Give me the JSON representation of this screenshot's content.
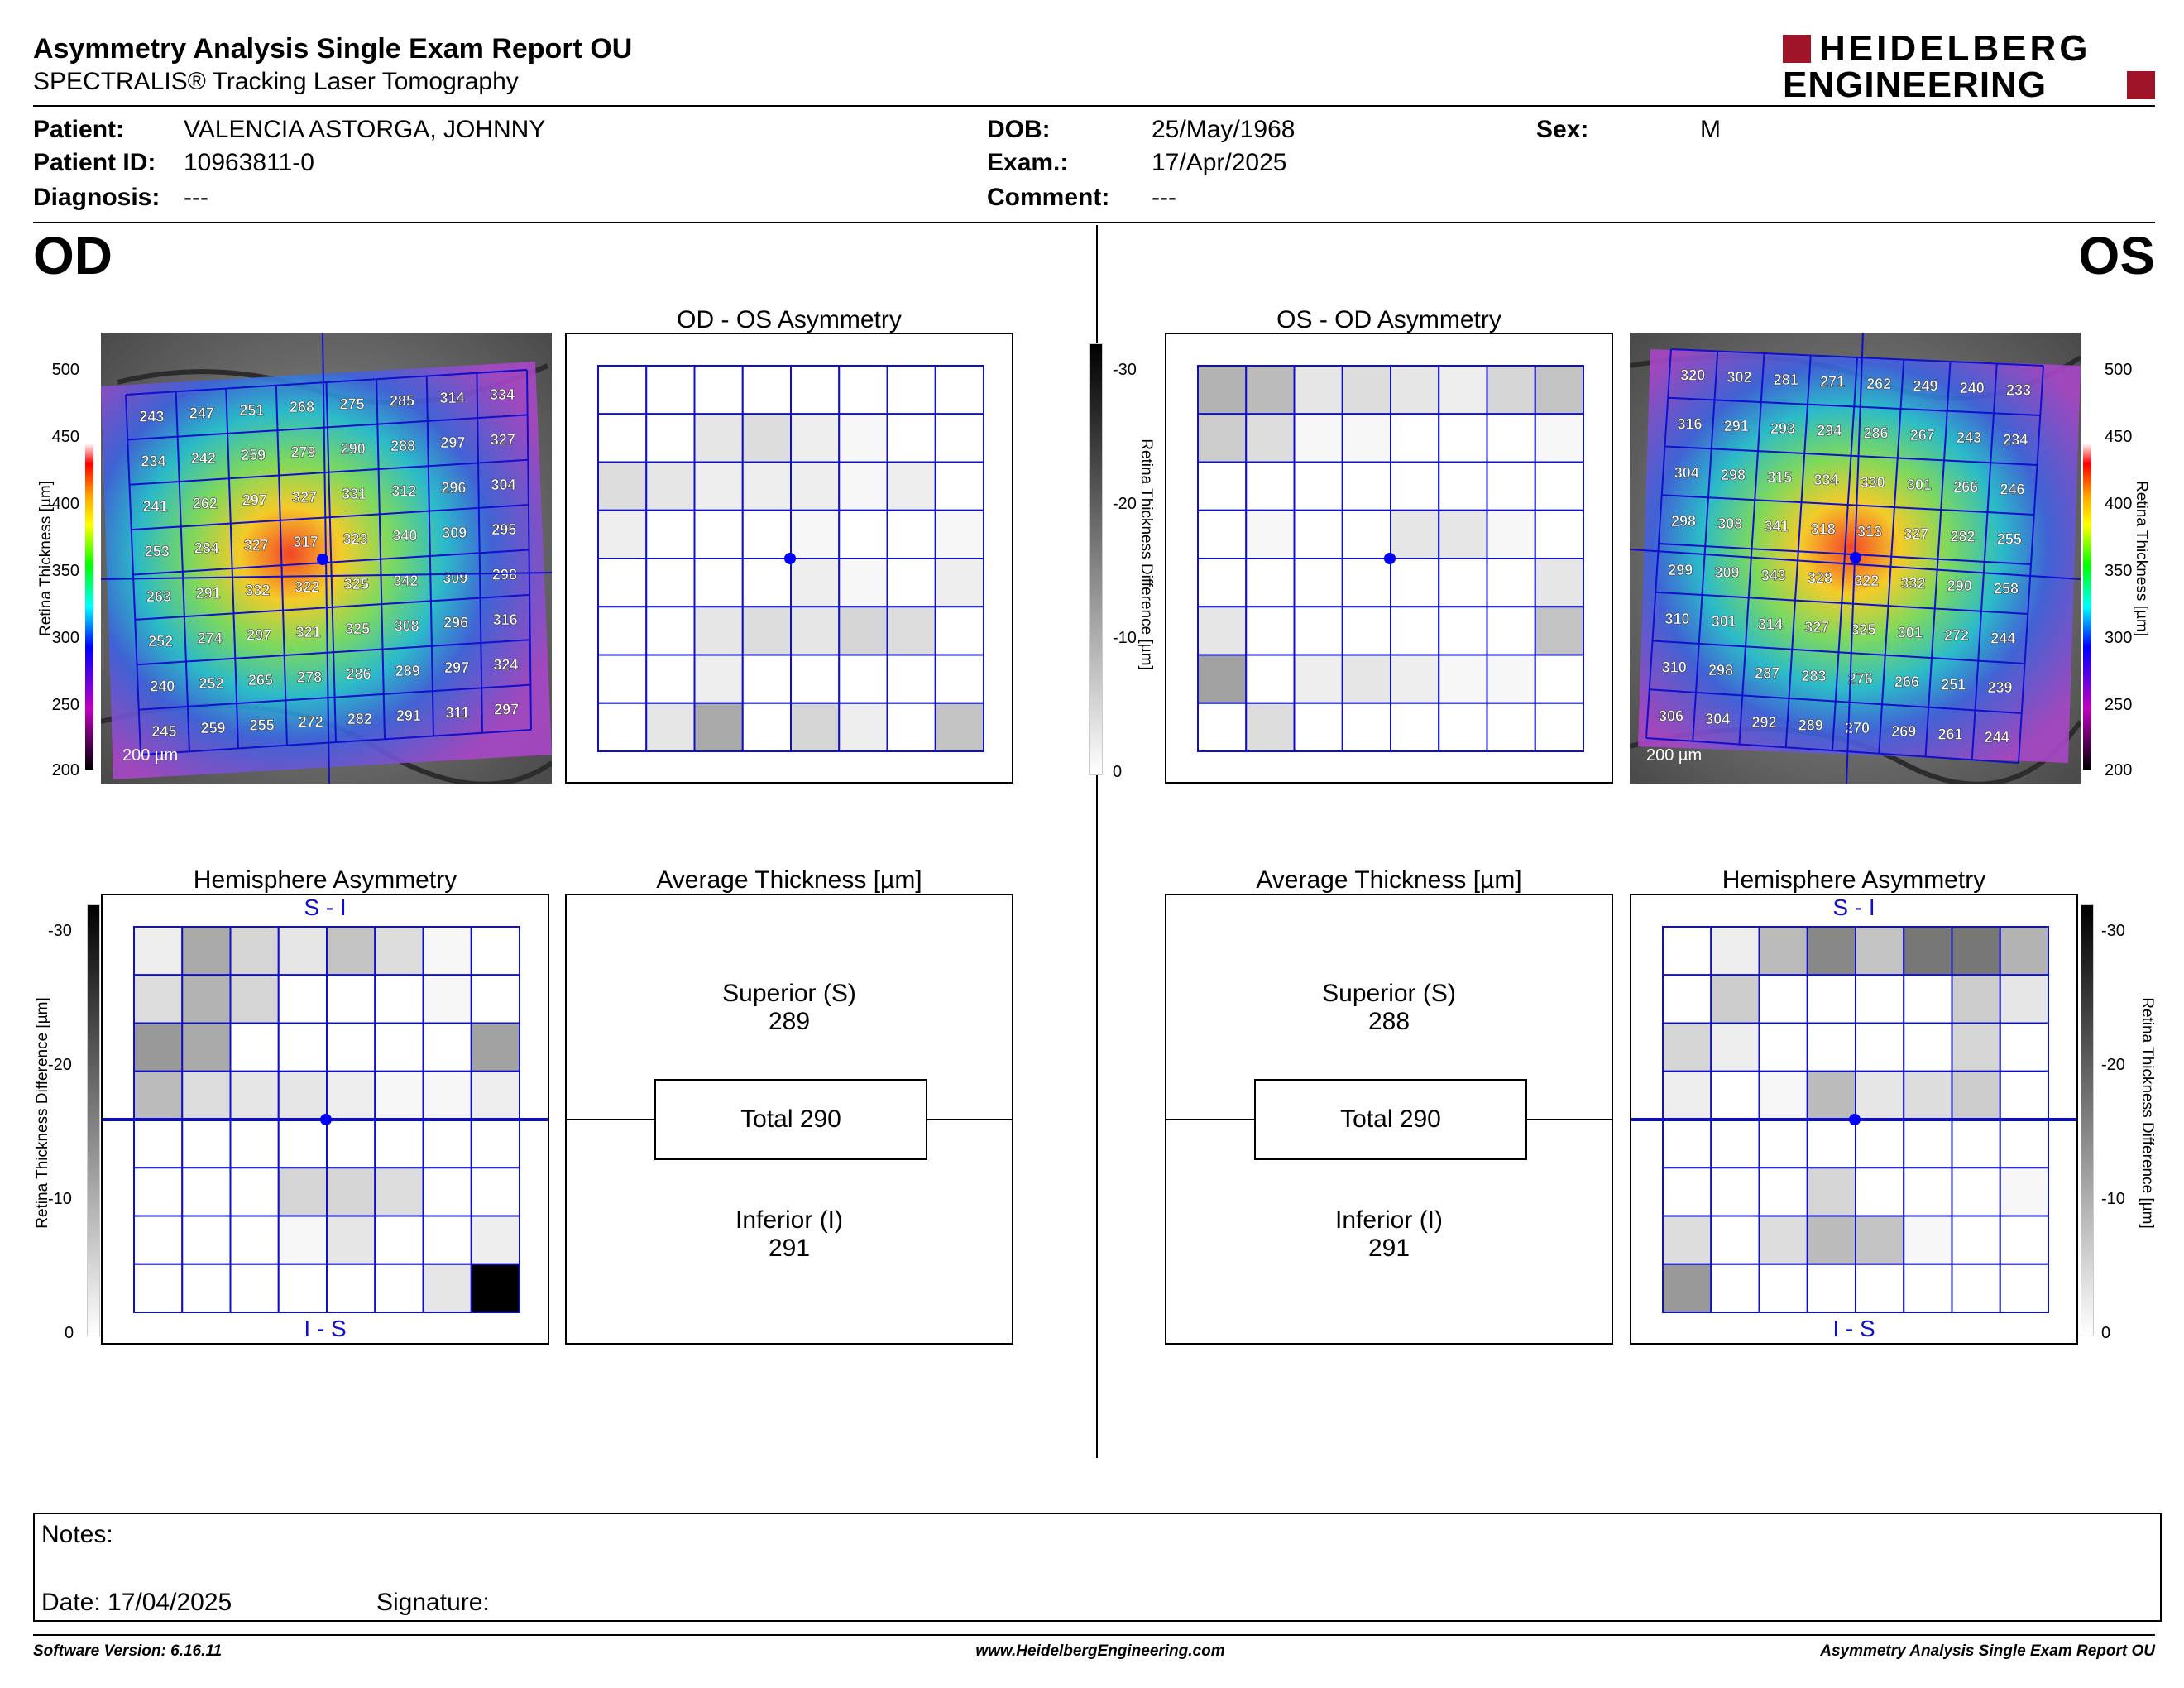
{
  "header": {
    "title": "Asymmetry Analysis Single Exam Report OU",
    "subtitle": "SPECTRALIS® Tracking Laser Tomography",
    "logo_line1": "HEIDELBERG",
    "logo_line2": "ENGINEERING"
  },
  "patient": {
    "patient_label": "Patient:",
    "patient_value": "VALENCIA ASTORGA, JOHNNY",
    "id_label": "Patient ID:",
    "id_value": "10963811-0",
    "diagnosis_label": "Diagnosis:",
    "diagnosis_value": "---",
    "dob_label": "DOB:",
    "dob_value": "25/May/1968",
    "exam_label": "Exam.:",
    "exam_value": "17/Apr/2025",
    "comment_label": "Comment:",
    "comment_value": "---",
    "sex_label": "Sex:",
    "sex_value": "M"
  },
  "eyes": {
    "od": "OD",
    "os": "OS"
  },
  "panels": {
    "od_os_title": "OD - OS Asymmetry",
    "os_od_title": "OS - OD Asymmetry",
    "hemi_title": "Hemisphere Asymmetry",
    "avg_title": "Average Thickness [µm]",
    "s_minus_i": "S - I",
    "i_minus_s": "I - S",
    "scale_bar": "200 µm"
  },
  "axes": {
    "thickness_label": "Retina  Thickness [µm]",
    "thickness_ticks": [
      "500",
      "450",
      "400",
      "350",
      "300",
      "250",
      "200"
    ],
    "diff_label": "Retina Thickness Difference [µm]",
    "diff_ticks": [
      "-30",
      "-20",
      "-10",
      "0"
    ]
  },
  "colors": {
    "grid": "#1010cc",
    "fovea": "#0000ff"
  },
  "od_thickness": [
    [
      "243",
      "247",
      "251",
      "268",
      "275",
      "285",
      "314",
      "334"
    ],
    [
      "234",
      "242",
      "259",
      "279",
      "290",
      "288",
      "297",
      "327"
    ],
    [
      "241",
      "262",
      "297",
      "327",
      "331",
      "312",
      "296",
      "304"
    ],
    [
      "253",
      "284",
      "327",
      "317",
      "323",
      "340",
      "309",
      "295"
    ],
    [
      "263",
      "291",
      "332",
      "322",
      "325",
      "342",
      "309",
      "298"
    ],
    [
      "252",
      "274",
      "297",
      "321",
      "325",
      "308",
      "296",
      "316"
    ],
    [
      "240",
      "252",
      "265",
      "278",
      "286",
      "289",
      "297",
      "324"
    ],
    [
      "245",
      "259",
      "255",
      "272",
      "282",
      "291",
      "311",
      "297"
    ]
  ],
  "os_thickness": [
    [
      "320",
      "302",
      "281",
      "271",
      "262",
      "249",
      "240",
      "233"
    ],
    [
      "316",
      "291",
      "293",
      "294",
      "286",
      "267",
      "243",
      "234"
    ],
    [
      "304",
      "298",
      "315",
      "334",
      "330",
      "301",
      "266",
      "246"
    ],
    [
      "298",
      "308",
      "341",
      "318",
      "313",
      "327",
      "282",
      "255"
    ],
    [
      "299",
      "309",
      "343",
      "328",
      "322",
      "332",
      "290",
      "258"
    ],
    [
      "310",
      "301",
      "314",
      "327",
      "325",
      "301",
      "272",
      "244"
    ],
    [
      "310",
      "298",
      "287",
      "283",
      "276",
      "266",
      "251",
      "239"
    ],
    [
      "306",
      "304",
      "292",
      "289",
      "270",
      "269",
      "261",
      "244"
    ]
  ],
  "od_os_asymmetry": [
    [
      0,
      0,
      0,
      0,
      0,
      0,
      0,
      0
    ],
    [
      0,
      0,
      3,
      4,
      2,
      1,
      0,
      0
    ],
    [
      4,
      3,
      2,
      2,
      2,
      1,
      2,
      0
    ],
    [
      2,
      0,
      0,
      0,
      1,
      0,
      0,
      1
    ],
    [
      0,
      0,
      0,
      0,
      2,
      1,
      0,
      2
    ],
    [
      0,
      0,
      3,
      4,
      3,
      5,
      4,
      0
    ],
    [
      0,
      0,
      2,
      0,
      0,
      0,
      0,
      0
    ],
    [
      0,
      3,
      10,
      0,
      5,
      2,
      0,
      7
    ]
  ],
  "os_od_asymmetry": [
    [
      9,
      8,
      3,
      4,
      3,
      2,
      5,
      7
    ],
    [
      6,
      4,
      1,
      1,
      0,
      0,
      0,
      1
    ],
    [
      0,
      0,
      0,
      0,
      0,
      0,
      0,
      0
    ],
    [
      0,
      1,
      0,
      0,
      3,
      3,
      1,
      0
    ],
    [
      0,
      0,
      0,
      0,
      0,
      0,
      0,
      3
    ],
    [
      3,
      0,
      0,
      0,
      0,
      0,
      0,
      7
    ],
    [
      11,
      0,
      2,
      3,
      2,
      1,
      1,
      0
    ],
    [
      0,
      4,
      0,
      0,
      0,
      0,
      0,
      0
    ]
  ],
  "od_hemi": [
    [
      2,
      10,
      5,
      3,
      7,
      4,
      1,
      0
    ],
    [
      4,
      9,
      5,
      0,
      0,
      0,
      1,
      0
    ],
    [
      12,
      10,
      0,
      0,
      0,
      0,
      0,
      11
    ],
    [
      8,
      4,
      3,
      3,
      2,
      1,
      1,
      2
    ],
    [
      0,
      0,
      0,
      0,
      0,
      0,
      0,
      0
    ],
    [
      0,
      0,
      0,
      5,
      5,
      4,
      0,
      0
    ],
    [
      0,
      0,
      0,
      1,
      3,
      0,
      0,
      2
    ],
    [
      0,
      0,
      0,
      0,
      0,
      0,
      3,
      30
    ]
  ],
  "os_hemi": [
    [
      0,
      2,
      8,
      14,
      7,
      16,
      16,
      9
    ],
    [
      0,
      6,
      0,
      0,
      0,
      0,
      6,
      3
    ],
    [
      5,
      2,
      0,
      0,
      0,
      0,
      5,
      0
    ],
    [
      2,
      0,
      1,
      8,
      3,
      4,
      6,
      0
    ],
    [
      0,
      0,
      0,
      0,
      0,
      0,
      0,
      0
    ],
    [
      0,
      0,
      0,
      5,
      0,
      0,
      0,
      1
    ],
    [
      4,
      0,
      4,
      8,
      7,
      1,
      0,
      0
    ],
    [
      12,
      0,
      0,
      0,
      0,
      0,
      0,
      0
    ]
  ],
  "od_average": {
    "superior_label": "Superior (S)",
    "superior": "289",
    "total_label": "Total 290",
    "inferior_label": "Inferior (I)",
    "inferior": "291"
  },
  "os_average": {
    "superior_label": "Superior (S)",
    "superior": "288",
    "total_label": "Total 290",
    "inferior_label": "Inferior (I)",
    "inferior": "291"
  },
  "notes": {
    "label": "Notes:",
    "date": "Date: 17/04/2025",
    "signature": "Signature:"
  },
  "footer": {
    "software": "Software Version: 6.16.11",
    "website": "www.HeidelbergEngineering.com",
    "report": "Asymmetry Analysis Single Exam Report OU"
  }
}
